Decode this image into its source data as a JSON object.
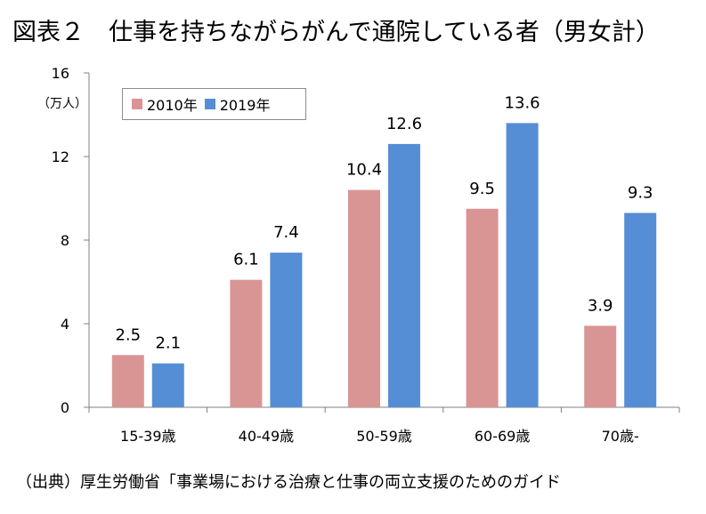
{
  "title": "図表２　仕事を持ちながらがんで通院している者（男女計）",
  "unit_label": "（万人）",
  "source": "（出典）厚生労働省「事業場における治療と仕事の両立支援のためのガイド",
  "colors": {
    "s2010": "#d99594",
    "s2019": "#558ed5",
    "axis": "#808080"
  },
  "chart_data": {
    "type": "bar",
    "categories": [
      "15-39歳",
      "40-49歳",
      "50-59歳",
      "60-69歳",
      "70歳-"
    ],
    "series": [
      {
        "name": "2010年",
        "values": [
          2.5,
          6.1,
          10.4,
          9.5,
          3.9
        ]
      },
      {
        "name": "2019年",
        "values": [
          2.1,
          7.4,
          12.6,
          13.6,
          9.3
        ]
      }
    ],
    "yticks": [
      "0",
      "4",
      "8",
      "12",
      "16"
    ],
    "ylim": [
      0,
      16
    ],
    "ylabel": "（万人）",
    "grid": false,
    "legend": "top-left"
  }
}
